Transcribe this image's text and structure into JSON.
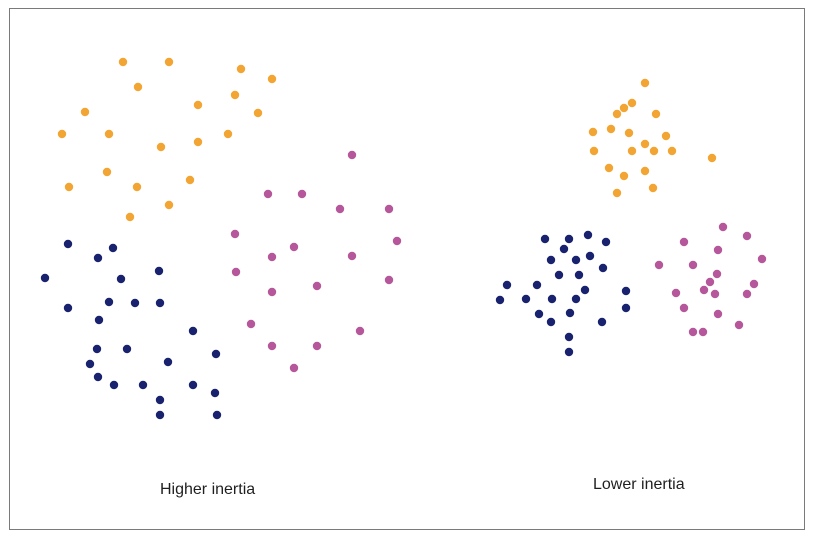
{
  "figure": {
    "panels": [
      {
        "caption": "Higher inertia"
      },
      {
        "caption": "Lower inertia"
      }
    ]
  },
  "colors": {
    "orange": "#f2a533",
    "navy": "#18226e",
    "magenta": "#b5579a",
    "frame": "#7a7a7a"
  },
  "chart_data": [
    {
      "type": "scatter",
      "title": "",
      "series": [
        {
          "color": "#f2a533",
          "points": [
            [
              123,
              62
            ],
            [
              169,
              62
            ],
            [
              241,
              69
            ],
            [
              138,
              87
            ],
            [
              272,
              79
            ],
            [
              235,
              95
            ],
            [
              85,
              112
            ],
            [
              198,
              105
            ],
            [
              258,
              113
            ],
            [
              62,
              134
            ],
            [
              109,
              134
            ],
            [
              228,
              134
            ],
            [
              198,
              142
            ],
            [
              161,
              147
            ],
            [
              107,
              172
            ],
            [
              190,
              180
            ],
            [
              69,
              187
            ],
            [
              137,
              187
            ],
            [
              169,
              205
            ],
            [
              130,
              217
            ]
          ]
        },
        {
          "color": "#18226e",
          "points": [
            [
              68,
              244
            ],
            [
              113,
              248
            ],
            [
              98,
              258
            ],
            [
              45,
              278
            ],
            [
              121,
              279
            ],
            [
              159,
              271
            ],
            [
              68,
              308
            ],
            [
              109,
              302
            ],
            [
              135,
              303
            ],
            [
              160,
              303
            ],
            [
              99,
              320
            ],
            [
              193,
              331
            ],
            [
              97,
              349
            ],
            [
              127,
              349
            ],
            [
              216,
              354
            ],
            [
              90,
              364
            ],
            [
              168,
              362
            ],
            [
              98,
              377
            ],
            [
              114,
              385
            ],
            [
              143,
              385
            ],
            [
              193,
              385
            ],
            [
              215,
              393
            ],
            [
              160,
              400
            ],
            [
              160,
              415
            ],
            [
              217,
              415
            ]
          ]
        },
        {
          "color": "#b5579a",
          "points": [
            [
              352,
              155
            ],
            [
              268,
              194
            ],
            [
              302,
              194
            ],
            [
              340,
              209
            ],
            [
              389,
              209
            ],
            [
              235,
              234
            ],
            [
              397,
              241
            ],
            [
              294,
              247
            ],
            [
              272,
              257
            ],
            [
              352,
              256
            ],
            [
              236,
              272
            ],
            [
              272,
              292
            ],
            [
              317,
              286
            ],
            [
              389,
              280
            ],
            [
              251,
              324
            ],
            [
              360,
              331
            ],
            [
              272,
              346
            ],
            [
              317,
              346
            ],
            [
              294,
              368
            ]
          ]
        }
      ]
    },
    {
      "type": "scatter",
      "title": "",
      "series": [
        {
          "color": "#f2a533",
          "points": [
            [
              645,
              83
            ],
            [
              632,
              103
            ],
            [
              624,
              108
            ],
            [
              617,
              114
            ],
            [
              656,
              114
            ],
            [
              611,
              129
            ],
            [
              593,
              132
            ],
            [
              629,
              133
            ],
            [
              666,
              136
            ],
            [
              645,
              144
            ],
            [
              594,
              151
            ],
            [
              632,
              151
            ],
            [
              654,
              151
            ],
            [
              672,
              151
            ],
            [
              712,
              158
            ],
            [
              609,
              168
            ],
            [
              645,
              171
            ],
            [
              624,
              176
            ],
            [
              653,
              188
            ],
            [
              617,
              193
            ]
          ]
        },
        {
          "color": "#18226e",
          "points": [
            [
              545,
              239
            ],
            [
              569,
              239
            ],
            [
              588,
              235
            ],
            [
              606,
              242
            ],
            [
              564,
              249
            ],
            [
              551,
              260
            ],
            [
              576,
              260
            ],
            [
              590,
              256
            ],
            [
              603,
              268
            ],
            [
              559,
              275
            ],
            [
              579,
              275
            ],
            [
              507,
              285
            ],
            [
              537,
              285
            ],
            [
              585,
              290
            ],
            [
              626,
              291
            ],
            [
              500,
              300
            ],
            [
              526,
              299
            ],
            [
              552,
              299
            ],
            [
              576,
              299
            ],
            [
              626,
              308
            ],
            [
              539,
              314
            ],
            [
              570,
              313
            ],
            [
              551,
              322
            ],
            [
              602,
              322
            ],
            [
              569,
              337
            ],
            [
              569,
              352
            ]
          ]
        },
        {
          "color": "#b5579a",
          "points": [
            [
              723,
              227
            ],
            [
              684,
              242
            ],
            [
              747,
              236
            ],
            [
              718,
              250
            ],
            [
              762,
              259
            ],
            [
              659,
              265
            ],
            [
              693,
              265
            ],
            [
              717,
              274
            ],
            [
              754,
              284
            ],
            [
              710,
              282
            ],
            [
              704,
              290
            ],
            [
              676,
              293
            ],
            [
              747,
              294
            ],
            [
              715,
              294
            ],
            [
              684,
              308
            ],
            [
              718,
              314
            ],
            [
              739,
              325
            ],
            [
              693,
              332
            ],
            [
              703,
              332
            ]
          ]
        }
      ]
    }
  ]
}
